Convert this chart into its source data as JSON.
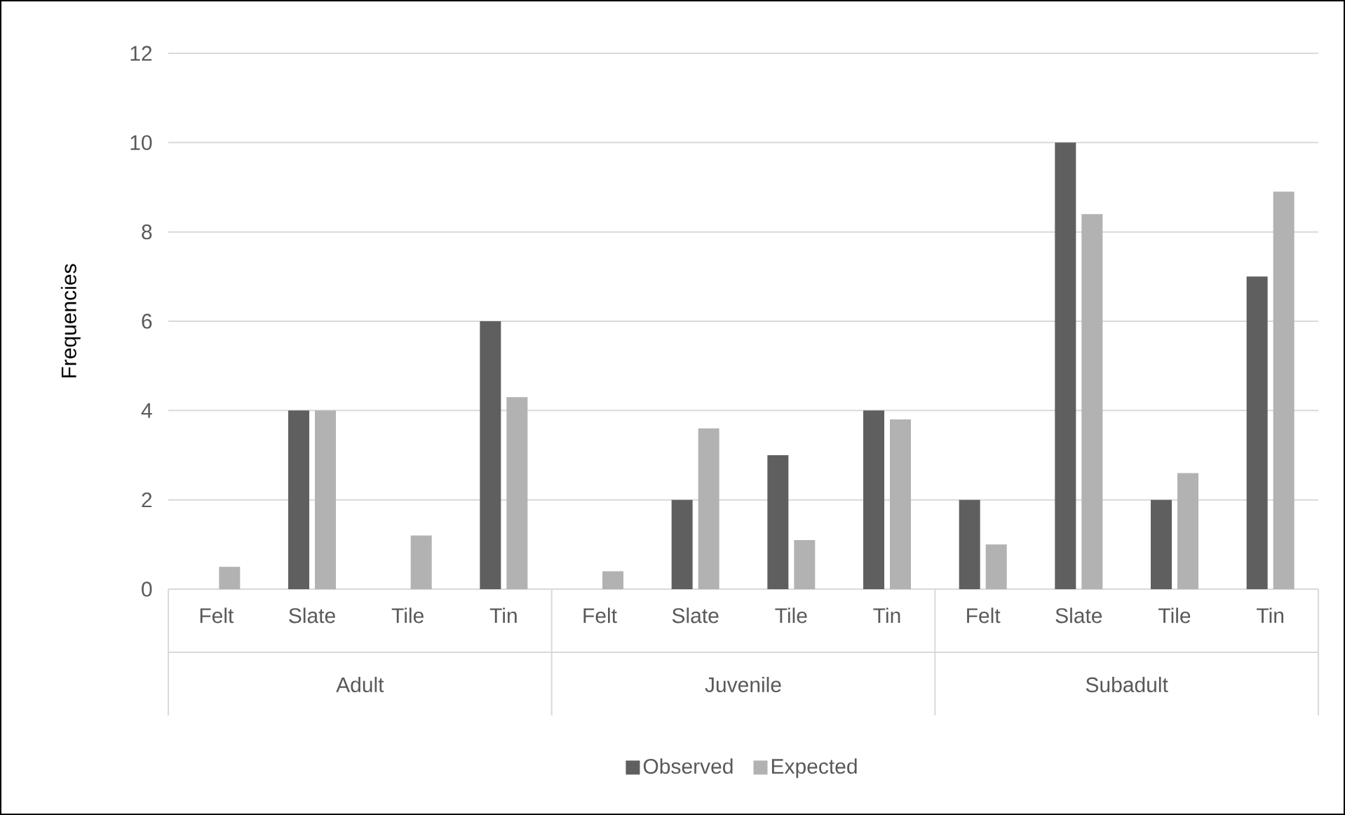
{
  "chart_data": {
    "type": "bar",
    "ylabel": "Frequencies",
    "categories": [
      "Felt",
      "Slate",
      "Tile",
      "Tin",
      "Felt",
      "Slate",
      "Tile",
      "Tin",
      "Felt",
      "Slate",
      "Tile",
      "Tin"
    ],
    "annotations": [
      "Adult",
      "Juvenile",
      "Subadult"
    ],
    "series": [
      {
        "name": "Observed",
        "color": "#5f5f5f",
        "values": [
          0,
          4,
          0,
          6,
          0,
          2,
          3,
          4,
          2,
          10,
          2,
          7
        ]
      },
      {
        "name": "Expected",
        "color": "#b2b2b2",
        "values": [
          0.5,
          4,
          1.2,
          4.3,
          0.4,
          3.6,
          1.1,
          3.8,
          1.0,
          8.4,
          2.6,
          8.9
        ]
      }
    ],
    "ylim": [
      0,
      12
    ],
    "yticks": [
      0,
      2,
      4,
      6,
      8,
      10,
      12
    ],
    "grid": "y",
    "legend": "bottom"
  }
}
